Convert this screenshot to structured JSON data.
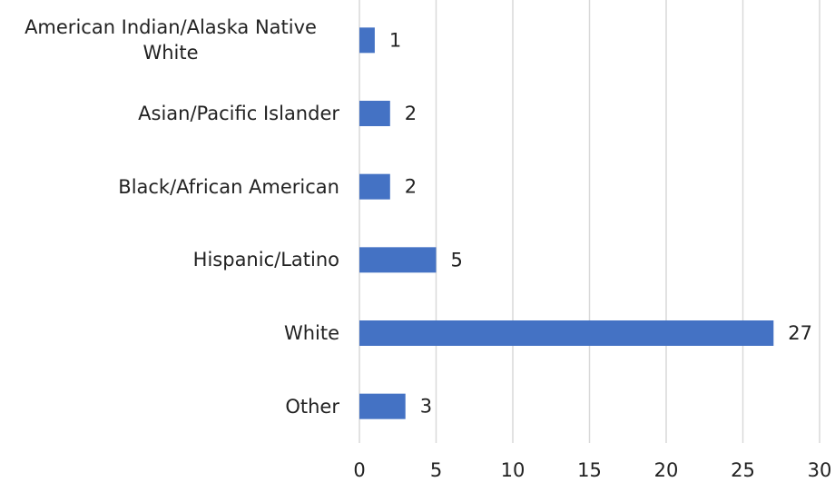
{
  "chart_data": {
    "type": "bar",
    "orientation": "horizontal",
    "categories": [
      "American Indian/Alaska Native White",
      "Asian/Pacific Islander",
      "Black/African American",
      "Hispanic/Latino",
      "White",
      "Other"
    ],
    "values": [
      1,
      2,
      2,
      5,
      27,
      3
    ],
    "color": "#4472c4",
    "xlim": [
      0,
      30
    ],
    "xticks": [
      0,
      5,
      10,
      15,
      20,
      25,
      30
    ],
    "grid": true
  }
}
